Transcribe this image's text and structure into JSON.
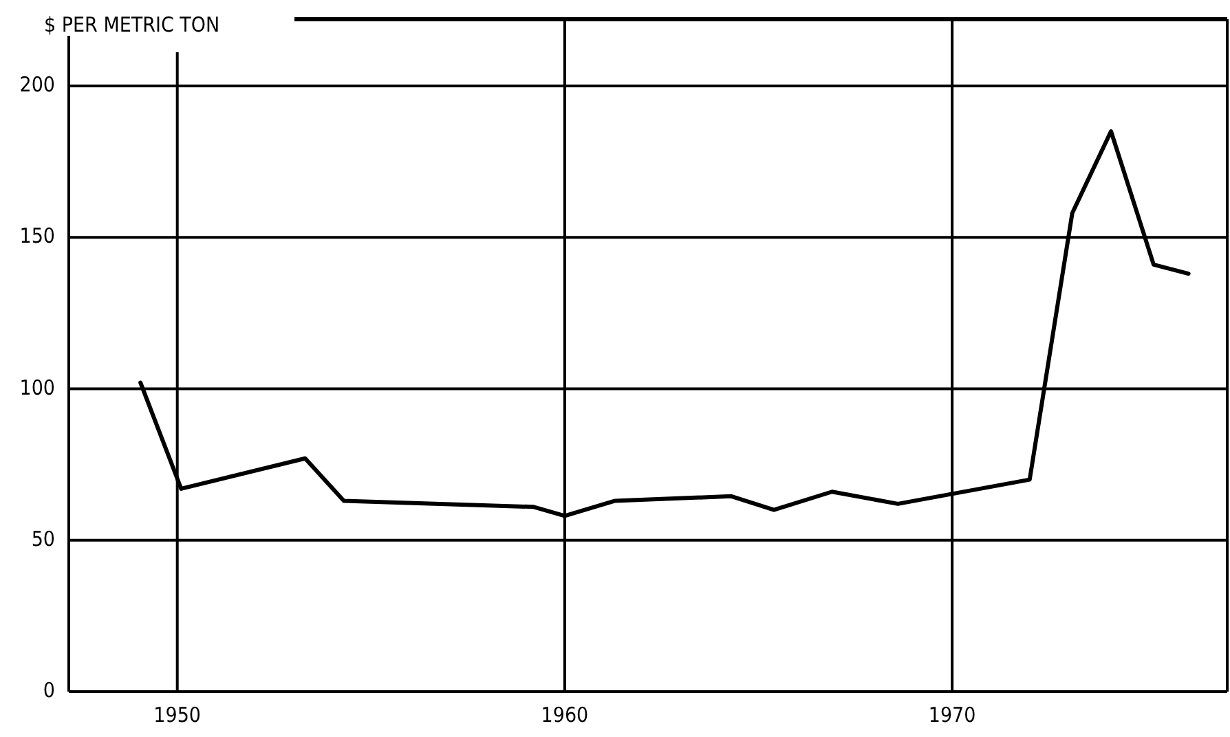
{
  "chart_data": {
    "type": "line",
    "ylabel": "$ PER METRIC TON",
    "x": [
      1949.05,
      1950.1,
      1953.3,
      1954.3,
      1959.2,
      1960,
      1961.3,
      1964.3,
      1965.4,
      1966.9,
      1968.6,
      1972,
      1973.1,
      1974.1,
      1975.2,
      1976.1
    ],
    "series": [
      {
        "color": "#000000",
        "values": [
          102,
          67,
          77,
          63,
          61,
          58,
          63,
          64.5,
          60,
          66,
          62,
          70,
          158,
          185,
          141,
          138
        ]
      }
    ],
    "xlim": [
      1947.2,
      1977.1
    ],
    "xticks": [
      1950,
      1960,
      1970
    ],
    "ylim": [
      0,
      222
    ],
    "yticks": [
      0,
      50,
      100,
      150,
      200
    ],
    "grid": true,
    "marker": "none",
    "line_style": "solid"
  }
}
